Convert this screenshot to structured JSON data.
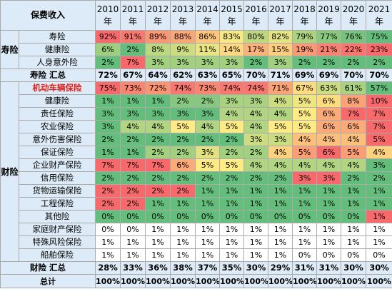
{
  "header": {
    "corner": "保费收入",
    "years": [
      "2010年",
      "2011年",
      "2012年",
      "2013年",
      "2014年",
      "2015年",
      "2016年",
      "2017年",
      "2018年",
      "2019年",
      "2020年",
      "2021年"
    ]
  },
  "groups": {
    "life": "寿险",
    "property": "财险"
  },
  "life_rows": [
    {
      "label": "寿险",
      "values": [
        "92%",
        "91%",
        "89%",
        "88%",
        "86%",
        "83%",
        "80%",
        "82%",
        "79%",
        "77%",
        "76%",
        "75%"
      ]
    },
    {
      "label": "健康险",
      "values": [
        "6%",
        "2%",
        "8%",
        "9%",
        "11%",
        "14%",
        "17%",
        "15%",
        "19%",
        "21%",
        "22%",
        "23%"
      ]
    },
    {
      "label": "人身意外险",
      "values": [
        "2%",
        "7%",
        "3%",
        "3%",
        "3%",
        "3%",
        "2%",
        "3%",
        "2%",
        "2%",
        "2%",
        "2%"
      ]
    }
  ],
  "life_summary": {
    "label": "寿险 汇总",
    "values": [
      "72%",
      "67%",
      "64%",
      "62%",
      "63%",
      "65%",
      "70%",
      "71%",
      "69%",
      "69%",
      "70%",
      "70%"
    ]
  },
  "property_rows": [
    {
      "label": "机动车辆保险",
      "highlight": true,
      "values": [
        "75%",
        "73%",
        "72%",
        "74%",
        "73%",
        "74%",
        "74%",
        "71%",
        "67%",
        "63%",
        "61%",
        "57%"
      ]
    },
    {
      "label": "健康险",
      "values": [
        "1%",
        "1%",
        "1%",
        "2%",
        "2%",
        "3%",
        "3%",
        "4%",
        "5%",
        "6%",
        "8%",
        "10%"
      ]
    },
    {
      "label": "责任保险",
      "values": [
        "3%",
        "3%",
        "3%",
        "3%",
        "3%",
        "4%",
        "4%",
        "4%",
        "5%",
        "6%",
        "7%",
        "7%"
      ]
    },
    {
      "label": "农业保险",
      "values": [
        "3%",
        "4%",
        "4%",
        "5%",
        "4%",
        "5%",
        "4%",
        "5%",
        "5%",
        "6%",
        "6%",
        "7%"
      ]
    },
    {
      "label": "意外伤害保险",
      "values": [
        "2%",
        "2%",
        "2%",
        "2%",
        "2%",
        "2%",
        "3%",
        "3%",
        "4%",
        "4%",
        "4%",
        "5%"
      ]
    },
    {
      "label": "保证保险",
      "values": [
        "1%",
        "1%",
        "2%",
        "2%",
        "3%",
        "2%",
        "2%",
        "4%",
        "5%",
        "6%",
        "5%",
        "4%"
      ]
    },
    {
      "label": "企业财产保险",
      "values": [
        "7%",
        "7%",
        "7%",
        "6%",
        "5%",
        "5%",
        "4%",
        "4%",
        "4%",
        "4%",
        "4%",
        "3%"
      ]
    },
    {
      "label": "信用保险",
      "values": [
        "2%",
        "2%",
        "2%",
        "2%",
        "2%",
        "2%",
        "2%",
        "2%",
        "3%",
        "3%",
        "2%",
        "2%"
      ]
    },
    {
      "label": "货物运输保险",
      "values": [
        "2%",
        "2%",
        "2%",
        "2%",
        "1%",
        "1%",
        "1%",
        "1%",
        "1%",
        "1%",
        "1%",
        "1%"
      ]
    },
    {
      "label": "工程保险",
      "values": [
        "2%",
        "2%",
        "1%",
        "1%",
        "1%",
        "1%",
        "1%",
        "1%",
        "1%",
        "1%",
        "1%",
        "1%"
      ]
    },
    {
      "label": "其他险",
      "values": [
        "0%",
        "0%",
        "0%",
        "0%",
        "0%",
        "0%",
        "0%",
        "0%",
        "0%",
        "0%",
        "0%",
        "1%"
      ]
    },
    {
      "label": "家庭财产保险",
      "values": [
        "0%",
        "0%",
        "1%",
        "1%",
        "1%",
        "1%",
        "1%",
        "1%",
        "1%",
        "1%",
        "1%",
        "1%"
      ]
    },
    {
      "label": "特殊风险保险",
      "values": [
        "1%",
        "1%",
        "1%",
        "1%",
        "1%",
        "1%",
        "1%",
        "1%",
        "1%",
        "1%",
        "1%",
        "1%"
      ]
    },
    {
      "label": "船舶保险",
      "values": [
        "1%",
        "1%",
        "1%",
        "1%",
        "1%",
        "1%",
        "1%",
        "1%",
        "0%",
        "0%",
        "0%",
        "0%"
      ]
    }
  ],
  "property_summary": {
    "label": "财险 汇总",
    "values": [
      "28%",
      "33%",
      "36%",
      "38%",
      "37%",
      "35%",
      "30%",
      "29%",
      "31%",
      "31%",
      "30%",
      "30%"
    ]
  },
  "total": {
    "label": "总计",
    "values": [
      "100%",
      "100%",
      "100%",
      "100%",
      "100%",
      "100%",
      "100%",
      "100%",
      "100%",
      "100%",
      "100%",
      "100%"
    ]
  },
  "scale_colors": {
    "low": "#63be7b",
    "mid": "#ffeb84",
    "high": "#f8696b"
  }
}
